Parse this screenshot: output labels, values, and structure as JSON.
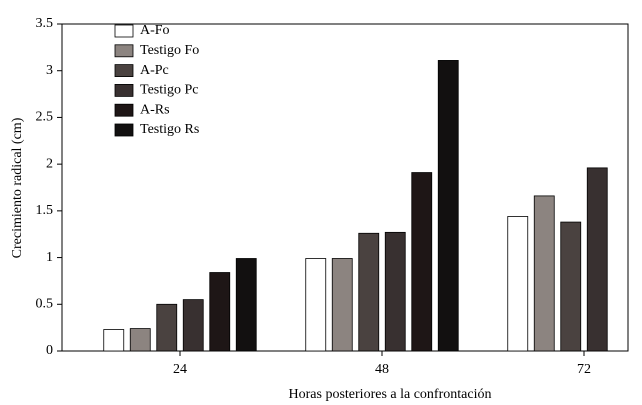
{
  "chart_data": {
    "type": "bar",
    "x_label": "Horas posteriores a la confrontación",
    "y_label": "Crecimiento radical (cm)",
    "categories": [
      "24",
      "48",
      "72"
    ],
    "series": [
      {
        "name": "A-Fo",
        "color": "#ffffff",
        "values": [
          0.23,
          0.99,
          1.44
        ]
      },
      {
        "name": "Testigo Fo",
        "color": "#8c8480",
        "values": [
          0.24,
          0.99,
          1.66
        ]
      },
      {
        "name": "A-Pc",
        "color": "#4a4240",
        "values": [
          0.5,
          1.26,
          1.38
        ]
      },
      {
        "name": "Testigo Pc",
        "color": "#383030",
        "values": [
          0.55,
          1.27,
          1.96
        ]
      },
      {
        "name": "A-Rs",
        "color": "#1e1616",
        "values": [
          0.84,
          1.91,
          null
        ]
      },
      {
        "name": "Testigo Rs",
        "color": "#121010",
        "values": [
          0.99,
          3.11,
          null
        ]
      }
    ],
    "ylim": [
      0,
      3.5
    ],
    "yticks": [
      0,
      0.5,
      1,
      1.5,
      2,
      2.5,
      3,
      3.5
    ],
    "legend": "upper-left"
  }
}
